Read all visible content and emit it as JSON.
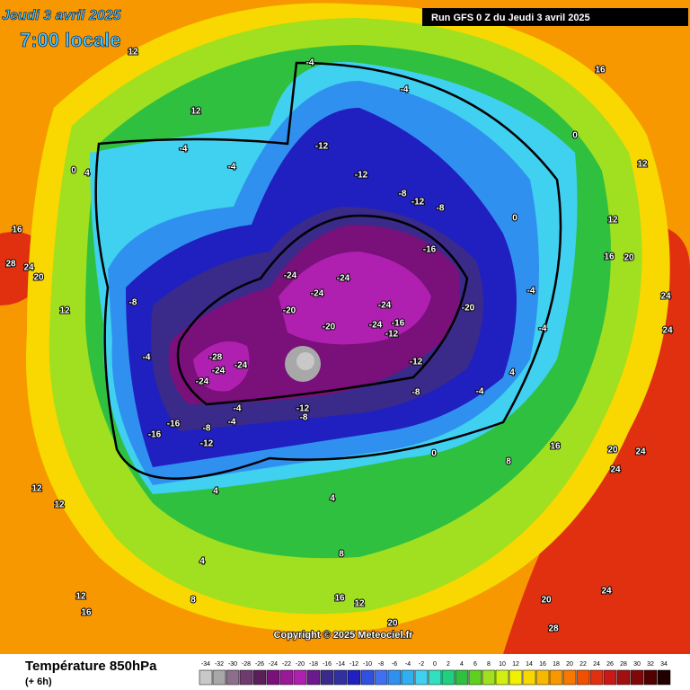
{
  "header": {
    "date": "Jeudi 3 avril 2025",
    "time": "7:00 locale",
    "run": "Run GFS 0 Z du Jeudi 3 avril 2025"
  },
  "copyright": "Copyright © 2025 Meteociel.fr",
  "legend": {
    "title": "Température 850hPa",
    "step": "(+ 6h)",
    "ticks": [
      -34,
      -32,
      -30,
      -28,
      -26,
      -24,
      -22,
      -20,
      -18,
      -16,
      -14,
      -12,
      -10,
      -8,
      -6,
      -4,
      -2,
      0,
      2,
      4,
      6,
      8,
      10,
      12,
      14,
      16,
      18,
      20,
      22,
      24,
      26,
      28,
      30,
      32,
      34
    ],
    "colors": [
      "#c8c8c8",
      "#a8a8a8",
      "#8c6f8c",
      "#6e3b6e",
      "#5a1e5a",
      "#7a107a",
      "#9a189a",
      "#b020b0",
      "#6a1a8a",
      "#3a2a8a",
      "#3030a0",
      "#2020c0",
      "#3050e0",
      "#4070f0",
      "#3090f0",
      "#30b0f0",
      "#40d0f0",
      "#30e0c0",
      "#20d080",
      "#30c040",
      "#60d020",
      "#a0e020",
      "#d0f010",
      "#f0f000",
      "#f8d800",
      "#f8b800",
      "#f89800",
      "#f87800",
      "#f05000",
      "#e03010",
      "#c81818",
      "#a01010",
      "#800808",
      "#500000",
      "#200000"
    ]
  },
  "map": {
    "labels": [
      12,
      12,
      16,
      -4,
      -4,
      -12,
      -12,
      -8,
      -12,
      -8,
      -16,
      -24,
      -24,
      -24,
      -24,
      -20,
      -20,
      -20,
      -24,
      -16,
      -12,
      -12,
      -8,
      -28,
      -24,
      -24,
      -24,
      -16,
      -16,
      -8,
      -12,
      -12,
      -8,
      -4,
      -4,
      -4,
      -4,
      -4,
      0,
      4,
      4,
      4,
      8,
      8,
      4,
      8,
      16,
      12,
      20,
      20,
      24,
      28,
      24,
      24,
      20,
      16,
      24,
      24,
      20,
      16,
      12,
      16,
      28,
      24,
      20,
      12,
      12,
      12,
      16,
      12,
      -8,
      -4,
      0,
      4,
      -4,
      -4,
      0,
      0,
      12
    ]
  }
}
